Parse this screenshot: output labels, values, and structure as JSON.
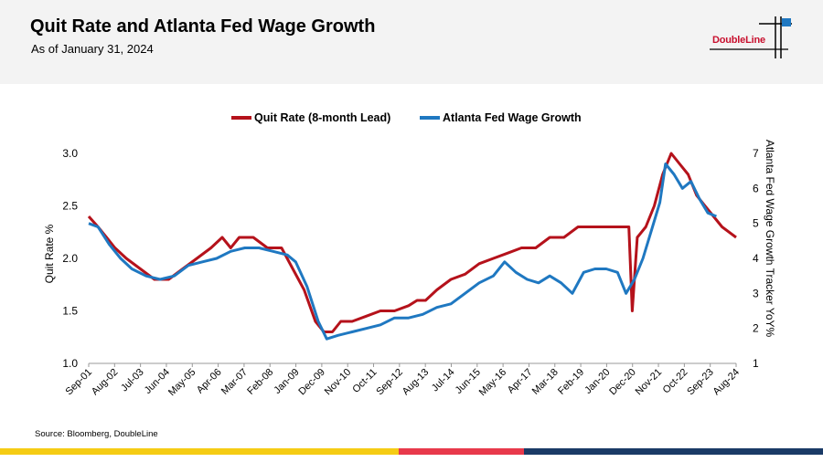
{
  "title": "Quit Rate and Atlanta Fed Wage Growth",
  "subtitle": "As of January 31, 2024",
  "logo": "DoubleLine",
  "source": "Source: Bloomberg, DoubleLine",
  "colors": {
    "quit": "#b5121b",
    "wage": "#1f78c1",
    "bar_yellow": "#f5cc14",
    "bar_red": "#e8394b",
    "bar_navy": "#1a3a66"
  },
  "chart_data": {
    "type": "line",
    "title": "",
    "xlabel": "",
    "ylabel": "Quit Rate %",
    "y2label": "Atlanta Fed Wage Growth Tracker YoY%",
    "ylim": [
      1.0,
      3.0
    ],
    "y2lim": [
      1,
      7
    ],
    "yticks": [
      "1.0",
      "1.5",
      "2.0",
      "2.5",
      "3.0"
    ],
    "y2ticks": [
      "1",
      "2",
      "3",
      "4",
      "5",
      "6",
      "7"
    ],
    "x_ticks": [
      "Sep-01",
      "Aug-02",
      "Jul-03",
      "Jun-04",
      "May-05",
      "Apr-06",
      "Mar-07",
      "Feb-08",
      "Jan-09",
      "Dec-09",
      "Nov-10",
      "Oct-11",
      "Sep-12",
      "Aug-13",
      "Jul-14",
      "Jun-15",
      "May-16",
      "Apr-17",
      "Mar-18",
      "Feb-19",
      "Jan-20",
      "Dec-20",
      "Nov-21",
      "Oct-22",
      "Sep-23",
      "Aug-24"
    ],
    "legend": [
      "Quit Rate (8-month Lead)",
      "Atlanta Fed Wage Growth"
    ],
    "legend_position": "top-center",
    "series": [
      {
        "name": "Quit Rate (8-month Lead)",
        "axis": "left",
        "x": [
          2001.67,
          2002.0,
          2002.3,
          2002.6,
          2003.0,
          2003.5,
          2004.0,
          2004.5,
          2005.0,
          2005.5,
          2006.0,
          2006.4,
          2006.7,
          2007.0,
          2007.5,
          2008.0,
          2008.5,
          2008.9,
          2009.3,
          2009.7,
          2010.0,
          2010.3,
          2010.6,
          2011.0,
          2011.5,
          2012.0,
          2012.5,
          2013.0,
          2013.3,
          2013.6,
          2014.0,
          2014.5,
          2015.0,
          2015.5,
          2016.0,
          2016.5,
          2017.0,
          2017.5,
          2018.0,
          2018.5,
          2019.0,
          2019.5,
          2020.0,
          2020.5,
          2020.8,
          2020.92,
          2021.1,
          2021.4,
          2021.7,
          2022.0,
          2022.3,
          2022.6,
          2022.9,
          2023.2,
          2023.5,
          2023.8,
          2024.1,
          2024.6
        ],
        "values": [
          2.4,
          2.3,
          2.2,
          2.1,
          2.0,
          1.9,
          1.8,
          1.8,
          1.9,
          2.0,
          2.1,
          2.2,
          2.1,
          2.2,
          2.2,
          2.1,
          2.1,
          1.9,
          1.7,
          1.4,
          1.3,
          1.3,
          1.4,
          1.4,
          1.45,
          1.5,
          1.5,
          1.55,
          1.6,
          1.6,
          1.7,
          1.8,
          1.85,
          1.95,
          2.0,
          2.05,
          2.1,
          2.1,
          2.2,
          2.2,
          2.3,
          2.3,
          2.3,
          2.3,
          2.3,
          1.5,
          2.2,
          2.3,
          2.5,
          2.8,
          3.0,
          2.9,
          2.8,
          2.6,
          2.5,
          2.4,
          2.3,
          2.2
        ]
      },
      {
        "name": "Atlanta Fed Wage Growth",
        "axis": "right",
        "x": [
          2001.67,
          2002.0,
          2002.4,
          2002.8,
          2003.2,
          2003.7,
          2004.2,
          2004.7,
          2005.2,
          2005.7,
          2006.2,
          2006.7,
          2007.2,
          2007.7,
          2008.2,
          2008.7,
          2009.0,
          2009.4,
          2009.8,
          2010.1,
          2010.5,
          2011.0,
          2011.5,
          2012.0,
          2012.5,
          2013.0,
          2013.5,
          2014.0,
          2014.5,
          2015.0,
          2015.5,
          2016.0,
          2016.4,
          2016.8,
          2017.2,
          2017.6,
          2018.0,
          2018.4,
          2018.8,
          2019.2,
          2019.6,
          2020.0,
          2020.4,
          2020.7,
          2021.0,
          2021.3,
          2021.6,
          2021.9,
          2022.1,
          2022.4,
          2022.7,
          2023.0,
          2023.3,
          2023.6,
          2023.9
        ],
        "values": [
          5.0,
          4.9,
          4.4,
          4.0,
          3.7,
          3.5,
          3.4,
          3.5,
          3.8,
          3.9,
          4.0,
          4.2,
          4.3,
          4.3,
          4.2,
          4.1,
          3.9,
          3.2,
          2.2,
          1.7,
          1.8,
          1.9,
          2.0,
          2.1,
          2.3,
          2.3,
          2.4,
          2.6,
          2.7,
          3.0,
          3.3,
          3.5,
          3.9,
          3.6,
          3.4,
          3.3,
          3.5,
          3.3,
          3.0,
          3.6,
          3.7,
          3.7,
          3.6,
          3.0,
          3.4,
          4.0,
          4.8,
          5.6,
          6.7,
          6.4,
          6.0,
          6.2,
          5.7,
          5.3,
          5.2
        ]
      }
    ]
  }
}
